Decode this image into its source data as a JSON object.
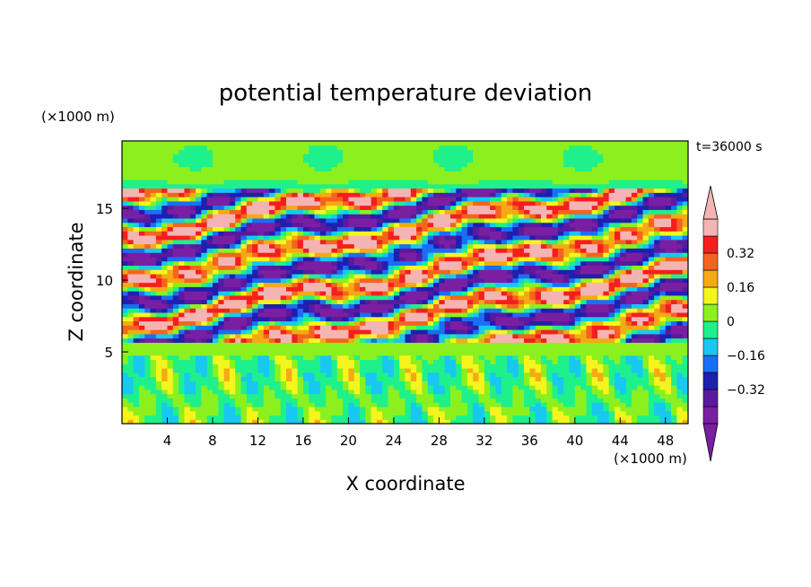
{
  "chart_data": {
    "type": "heatmap",
    "title": "potential temperature deviation",
    "xlabel": "X coordinate",
    "ylabel": "Z coordinate",
    "x_unit": "(×1000 m)",
    "y_unit": "(×1000 m)",
    "time_label": "t=36000 s",
    "xlim": [
      0,
      50
    ],
    "ylim": [
      0,
      19.7
    ],
    "xticks": [
      4,
      8,
      12,
      16,
      20,
      24,
      28,
      32,
      36,
      40,
      44,
      48
    ],
    "yticks": [
      5,
      10,
      15
    ],
    "colorbar": {
      "levels": [
        -0.48,
        -0.4,
        -0.32,
        -0.24,
        -0.16,
        -0.08,
        0,
        0.08,
        0.16,
        0.24,
        0.32,
        0.4,
        0.48
      ],
      "tick_values": [
        -0.32,
        -0.16,
        0,
        0.16,
        0.32
      ],
      "tick_labels": [
        "−0.32",
        "−0.16",
        "0",
        "0.16",
        "0.32"
      ],
      "extend": "both",
      "colors": [
        "#7a1fa2",
        "#5a1aa0",
        "#1f1fb0",
        "#1a6ef5",
        "#18c8f0",
        "#1ef08c",
        "#8cf01e",
        "#f5f51e",
        "#f5aa14",
        "#f5641e",
        "#f51e1e",
        "#f5b4b4"
      ]
    },
    "field_description_bands": [
      {
        "z_range": [
          16.5,
          19.7
        ],
        "dominant_value": 0.02
      },
      {
        "z_range": [
          5.5,
          16.5
        ],
        "dominant_value": "alternating tilted bands -0.45 to 0.45"
      },
      {
        "z_range": [
          5.0,
          5.5
        ],
        "dominant_value": 0.05
      },
      {
        "z_range": [
          0,
          5.0
        ],
        "dominant_value": "weak vertical cells -0.15 to 0.2"
      }
    ]
  }
}
